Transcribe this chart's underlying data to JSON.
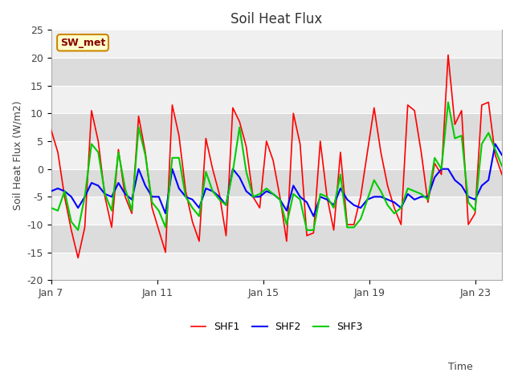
{
  "title": "Soil Heat Flux",
  "xlabel": "Time",
  "ylabel": "Soil Heat Flux (W/m2)",
  "ylim": [
    -20,
    25
  ],
  "xlim": [
    0,
    17
  ],
  "xtick_positions": [
    0,
    4,
    8,
    12,
    16
  ],
  "xtick_labels": [
    "Jan 7",
    "Jan 11",
    "Jan 15",
    "Jan 19",
    "Jan 23"
  ],
  "ytick_positions": [
    -20,
    -15,
    -10,
    -5,
    0,
    5,
    10,
    15,
    20,
    25
  ],
  "legend_labels": [
    "SHF1",
    "SHF2",
    "SHF3"
  ],
  "colors": {
    "SHF1": "#ff0000",
    "SHF2": "#0000ff",
    "SHF3": "#00cc00"
  },
  "annotation_text": "SW_met",
  "annotation_bg": "#ffffcc",
  "annotation_border": "#cc8800",
  "background_color": "#ffffff",
  "plot_bg_color": "#ffffff",
  "band_color_dark": "#dcdcdc",
  "band_color_light": "#f0f0f0",
  "SHF1": [
    7.0,
    3.0,
    -5.0,
    -11.0,
    -16.0,
    -10.5,
    10.5,
    5.0,
    -5.0,
    -10.5,
    3.5,
    -5.0,
    -8.0,
    9.5,
    3.0,
    -7.0,
    -11.0,
    -15.0,
    11.5,
    6.0,
    -4.0,
    -9.5,
    -13.0,
    5.5,
    0.0,
    -4.5,
    -12.0,
    11.0,
    8.5,
    4.0,
    -5.0,
    -7.0,
    5.0,
    1.5,
    -5.0,
    -13.0,
    10.0,
    4.5,
    -12.0,
    -11.5,
    5.0,
    -5.0,
    -11.0,
    3.0,
    -10.0,
    -10.0,
    -5.0,
    3.0,
    11.0,
    3.0,
    -3.0,
    -7.0,
    -10.0,
    11.5,
    10.5,
    3.0,
    -6.0,
    1.0,
    -1.0,
    20.5,
    8.0,
    10.5,
    -10.0,
    -8.0,
    11.5,
    12.0,
    2.5,
    -1.0
  ],
  "SHF2": [
    -4.0,
    -3.5,
    -4.0,
    -5.0,
    -7.0,
    -5.0,
    -2.5,
    -3.0,
    -4.5,
    -5.0,
    -2.5,
    -4.5,
    -5.5,
    0.0,
    -3.0,
    -5.0,
    -5.0,
    -8.0,
    0.0,
    -3.5,
    -5.0,
    -5.5,
    -7.0,
    -3.5,
    -4.0,
    -5.0,
    -6.5,
    0.0,
    -1.5,
    -4.0,
    -5.0,
    -5.0,
    -4.0,
    -4.5,
    -5.5,
    -7.5,
    -3.0,
    -5.0,
    -6.0,
    -8.5,
    -5.0,
    -5.5,
    -6.5,
    -3.5,
    -5.5,
    -6.5,
    -7.0,
    -5.5,
    -5.0,
    -5.0,
    -5.5,
    -6.0,
    -7.0,
    -4.5,
    -5.5,
    -5.0,
    -5.0,
    -1.5,
    0.0,
    0.0,
    -2.0,
    -3.0,
    -5.0,
    -5.5,
    -3.0,
    -2.0,
    4.5,
    2.5
  ],
  "SHF3": [
    -7.0,
    -7.5,
    -4.0,
    -9.5,
    -11.0,
    -5.0,
    4.5,
    3.0,
    -4.5,
    -7.5,
    3.0,
    -3.5,
    -7.5,
    7.5,
    2.5,
    -6.0,
    -7.5,
    -10.5,
    2.0,
    2.0,
    -5.0,
    -7.0,
    -8.5,
    -0.5,
    -4.0,
    -5.5,
    -6.5,
    -0.5,
    7.5,
    -0.5,
    -5.0,
    -4.5,
    -3.5,
    -4.5,
    -5.5,
    -10.0,
    -4.5,
    -5.5,
    -11.0,
    -11.0,
    -4.5,
    -5.0,
    -7.0,
    -1.0,
    -10.5,
    -10.5,
    -9.0,
    -5.5,
    -2.0,
    -4.0,
    -6.5,
    -8.0,
    -7.0,
    -3.5,
    -4.0,
    -4.5,
    -5.5,
    2.0,
    0.0,
    12.0,
    5.5,
    6.0,
    -6.0,
    -7.5,
    4.5,
    6.5,
    3.5,
    0.5
  ]
}
